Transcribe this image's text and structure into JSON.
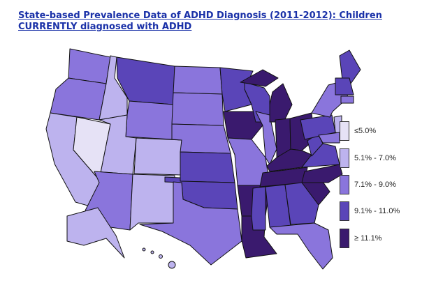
{
  "title": "State-based Prevalence Data of ADHD Diagnosis (2011-2012): Children CURRENTLY diagnosed with ADHD",
  "legend": [
    {
      "label": "≤5.0%",
      "color": "#e6e2f6"
    },
    {
      "label": "5.1% - 7.0%",
      "color": "#bdb3ee"
    },
    {
      "label": "7.1% - 9.0%",
      "color": "#8a75dc"
    },
    {
      "label": "9.1% - 11.0%",
      "color": "#5a45b8"
    },
    {
      "label": "≥ 11.1%",
      "color": "#3a1a6e"
    }
  ],
  "state_categories": {
    "WA": 2,
    "OR": 2,
    "CA": 1,
    "NV": 0,
    "ID": 1,
    "MT": 3,
    "WY": 2,
    "UT": 1,
    "CO": 1,
    "AZ": 2,
    "NM": 1,
    "ND": 2,
    "SD": 2,
    "NE": 2,
    "KS": 3,
    "OK": 3,
    "TX": 2,
    "MN": 3,
    "IA": 4,
    "MO": 2,
    "AR": 4,
    "LA": 4,
    "WI": 3,
    "IL": 2,
    "MI": 4,
    "IN": 4,
    "OH": 4,
    "KY": 4,
    "TN": 4,
    "MS": 3,
    "AL": 3,
    "GA": 3,
    "FL": 2,
    "SC": 4,
    "NC": 4,
    "VA": 3,
    "WV": 3,
    "PA": 3,
    "NY": 2,
    "ME": 3,
    "NE_NEW": 3,
    "NJ": 1,
    "MD": 2,
    "CT": 2,
    "AK": 1,
    "HI": 1
  }
}
